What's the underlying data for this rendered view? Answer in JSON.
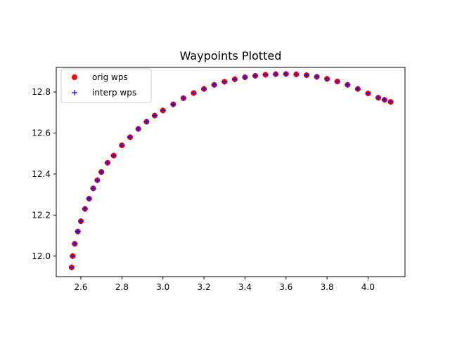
{
  "chart_data": {
    "type": "scatter",
    "title": "Waypoints Plotted",
    "xlabel": "",
    "ylabel": "",
    "xlim": [
      2.48,
      4.18
    ],
    "ylim": [
      11.9,
      12.92
    ],
    "xticks": [
      2.6,
      2.8,
      3.0,
      3.2,
      3.4,
      3.6,
      3.8,
      4.0
    ],
    "xtick_labels": [
      "2.6",
      "2.8",
      "3.0",
      "3.2",
      "3.4",
      "3.6",
      "3.8",
      "4.0"
    ],
    "yticks": [
      12.0,
      12.2,
      12.4,
      12.6,
      12.8
    ],
    "ytick_labels": [
      "12.0",
      "12.2",
      "12.4",
      "12.6",
      "12.8"
    ],
    "grid": false,
    "legend_position": "upper-left",
    "series": [
      {
        "name": "orig wps",
        "marker": "circle",
        "color": "#ff0000",
        "x": [
          2.555,
          2.56,
          2.57,
          2.585,
          2.6,
          2.62,
          2.64,
          2.66,
          2.68,
          2.7,
          2.73,
          2.76,
          2.8,
          2.84,
          2.88,
          2.92,
          2.96,
          3.0,
          3.05,
          3.1,
          3.15,
          3.2,
          3.25,
          3.3,
          3.35,
          3.4,
          3.45,
          3.5,
          3.55,
          3.6,
          3.65,
          3.7,
          3.75,
          3.8,
          3.85,
          3.9,
          3.95,
          4.0,
          4.05,
          4.08,
          4.11
        ],
        "y": [
          11.945,
          12.0,
          12.06,
          12.12,
          12.17,
          12.23,
          12.28,
          12.33,
          12.37,
          12.41,
          12.455,
          12.49,
          12.54,
          12.58,
          12.62,
          12.655,
          12.685,
          12.71,
          12.74,
          12.77,
          12.795,
          12.815,
          12.835,
          12.85,
          12.862,
          12.872,
          12.879,
          12.884,
          12.887,
          12.888,
          12.886,
          12.882,
          12.874,
          12.864,
          12.851,
          12.835,
          12.815,
          12.793,
          12.772,
          12.762,
          12.752
        ]
      },
      {
        "name": "interp wps",
        "marker": "plus",
        "color": "#0000ff",
        "x": [
          2.555,
          2.56,
          2.57,
          2.585,
          2.6,
          2.62,
          2.64,
          2.66,
          2.68,
          2.7,
          2.73,
          2.76,
          2.8,
          2.84,
          2.88,
          2.92,
          2.96,
          3.0,
          3.05,
          3.1,
          3.15,
          3.2,
          3.25,
          3.3,
          3.35,
          3.4,
          3.45,
          3.5,
          3.55,
          3.6,
          3.65,
          3.7,
          3.75,
          3.8,
          3.85,
          3.9,
          3.95,
          4.0,
          4.05,
          4.08,
          4.11
        ],
        "y": [
          11.945,
          12.0,
          12.06,
          12.12,
          12.17,
          12.23,
          12.28,
          12.33,
          12.37,
          12.41,
          12.455,
          12.49,
          12.54,
          12.58,
          12.62,
          12.655,
          12.685,
          12.71,
          12.74,
          12.77,
          12.795,
          12.815,
          12.835,
          12.85,
          12.862,
          12.872,
          12.879,
          12.884,
          12.887,
          12.888,
          12.886,
          12.882,
          12.874,
          12.864,
          12.851,
          12.835,
          12.815,
          12.793,
          12.772,
          12.762,
          12.752
        ]
      }
    ]
  }
}
